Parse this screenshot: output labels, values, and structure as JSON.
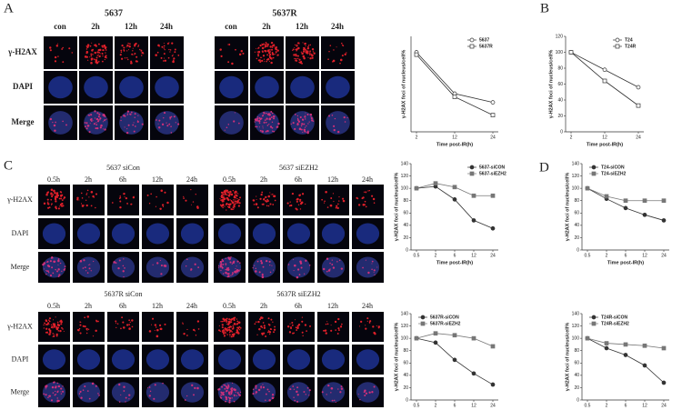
{
  "panel_labels": [
    "A",
    "B",
    "C",
    "D"
  ],
  "panel_a": {
    "groups": [
      "5637",
      "5637R"
    ],
    "columns": [
      "con",
      "2h",
      "12h",
      "24h"
    ],
    "rows": [
      "γ-H2AX",
      "DAPI",
      "Merge"
    ]
  },
  "panel_c": {
    "groups": [
      "5637  siCon",
      "5637  siEZH2",
      "5637R  siCon",
      "5637R  siEZH2"
    ],
    "columns": [
      "0.5h",
      "2h",
      "6h",
      "12h",
      "24h"
    ],
    "rows": [
      "γ-H2AX",
      "DAPI",
      "Merge"
    ]
  },
  "chart_data": [
    {
      "type": "line",
      "categories": [
        "2",
        "12",
        "24"
      ],
      "ylim": [
        0,
        120
      ],
      "ylabel": "γ-H2AX  foci of nucleus/cell%",
      "xlabel": "Time post-IR(h)",
      "legend": "upper right",
      "series": [
        {
          "name": "5637",
          "color": "#333333",
          "marker": "circle-open",
          "values": [
            100,
            48,
            37
          ]
        },
        {
          "name": "5637R",
          "color": "#333333",
          "marker": "square-open",
          "values": [
            97,
            44,
            21
          ]
        }
      ]
    },
    {
      "type": "line",
      "categories": [
        "2",
        "12",
        "24"
      ],
      "ylim": [
        0,
        120
      ],
      "yticks": [
        0,
        20,
        40,
        60,
        80,
        100,
        120
      ],
      "ylabel": "γ-H2AX foci of nucleus/cell%",
      "xlabel": "Time post-IR(h)",
      "legend": "upper right",
      "series": [
        {
          "name": "T24",
          "color": "#333333",
          "marker": "circle-open",
          "values": [
            100,
            78,
            56
          ]
        },
        {
          "name": "T24R",
          "color": "#333333",
          "marker": "square-open",
          "values": [
            100,
            64,
            33
          ]
        }
      ]
    },
    {
      "type": "line",
      "categories": [
        "0.5",
        "2",
        "6",
        "12",
        "24"
      ],
      "ylim": [
        0,
        140
      ],
      "yticks": [
        0,
        20,
        40,
        60,
        80,
        100,
        120,
        140
      ],
      "ylabel": "γ-H2AX  foci of nucleus/cell%",
      "xlabel": "Time post-IR(h)",
      "legend": "upper right",
      "series": [
        {
          "name": "5637-siCON",
          "color": "#333333",
          "marker": "circle",
          "values": [
            100,
            103,
            82,
            48,
            35
          ]
        },
        {
          "name": "5637-siEZH2",
          "color": "#777777",
          "marker": "square",
          "values": [
            100,
            108,
            102,
            88,
            88
          ]
        }
      ]
    },
    {
      "type": "line",
      "categories": [
        "0.5",
        "2",
        "6",
        "12",
        "24"
      ],
      "ylim": [
        0,
        140
      ],
      "yticks": [
        0,
        20,
        40,
        60,
        80,
        100,
        120,
        140
      ],
      "ylabel": "γ-H2AX  foci of nucleus/cell%",
      "xlabel": "Time post-IR(h)",
      "legend": "upper left",
      "series": [
        {
          "name": "T24-siCON",
          "color": "#333333",
          "marker": "circle",
          "values": [
            100,
            83,
            68,
            57,
            48
          ]
        },
        {
          "name": "T24-siEZH2",
          "color": "#777777",
          "marker": "square",
          "values": [
            100,
            87,
            80,
            80,
            80
          ]
        }
      ]
    },
    {
      "type": "line",
      "categories": [
        "0.5",
        "2",
        "6",
        "12",
        "24"
      ],
      "ylim": [
        0,
        140
      ],
      "yticks": [
        0,
        20,
        40,
        60,
        80,
        100,
        120,
        140
      ],
      "ylabel": "γ-H2AX  foci of nucleus/cell%",
      "xlabel": "Time post-IR(h)",
      "legend": "upper left",
      "series": [
        {
          "name": "5637R-siCON",
          "color": "#333333",
          "marker": "circle",
          "values": [
            100,
            93,
            65,
            43,
            25
          ]
        },
        {
          "name": "5637R-siEZH2",
          "color": "#777777",
          "marker": "square",
          "values": [
            100,
            108,
            105,
            100,
            87
          ]
        }
      ]
    },
    {
      "type": "line",
      "categories": [
        "0.5",
        "2",
        "6",
        "12",
        "24"
      ],
      "ylim": [
        0,
        140
      ],
      "yticks": [
        0,
        20,
        40,
        60,
        80,
        100,
        120,
        140
      ],
      "ylabel": "γ-H2AX  foci of nucleus/cell%",
      "xlabel": "Time post-IR(h)",
      "legend": "upper left",
      "series": [
        {
          "name": "T24R-siCON",
          "color": "#333333",
          "marker": "circle",
          "values": [
            100,
            84,
            73,
            56,
            28
          ]
        },
        {
          "name": "T24R-siEZH2",
          "color": "#777777",
          "marker": "square",
          "values": [
            100,
            92,
            90,
            88,
            84
          ]
        }
      ]
    }
  ]
}
